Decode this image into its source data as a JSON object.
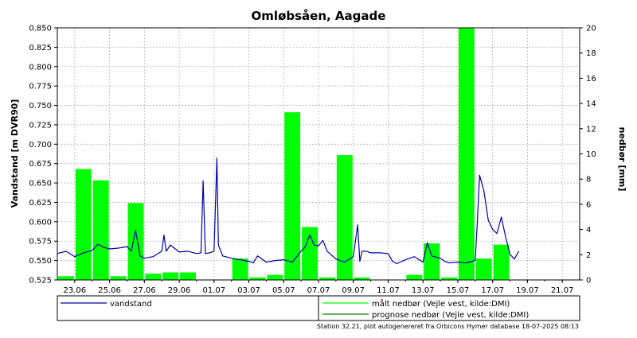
{
  "chart_data": {
    "type": "bar+line",
    "title": "Omløbsåen, Aagade",
    "ylabel_left": "Vandstand [m DVR90]",
    "ylabel_right": "nedbør [mm]",
    "ylim_left": [
      0.525,
      0.85
    ],
    "ylim_right": [
      0,
      20
    ],
    "yticks_left": [
      "0.850",
      "0.825",
      "0.800",
      "0.775",
      "0.750",
      "0.725",
      "0.700",
      "0.675",
      "0.650",
      "0.625",
      "0.600",
      "0.575",
      "0.550",
      "0.525"
    ],
    "yticks_right": [
      "20",
      "18",
      "16",
      "14",
      "12",
      "10",
      "8",
      "6",
      "4",
      "2",
      "0"
    ],
    "x_range": [
      "2025-06-22",
      "2025-07-22"
    ],
    "xtick_labels": [
      "23.06",
      "25.06",
      "27.06",
      "29.06",
      "01.07",
      "03.07",
      "05.07",
      "07.07",
      "09.07",
      "11.07",
      "13.07",
      "15.07",
      "17.07",
      "19.07",
      "21.07"
    ],
    "xtick_dates": [
      "2025-06-23",
      "2025-06-25",
      "2025-06-27",
      "2025-06-29",
      "2025-07-01",
      "2025-07-03",
      "2025-07-05",
      "2025-07-07",
      "2025-07-09",
      "2025-07-11",
      "2025-07-13",
      "2025-07-15",
      "2025-07-17",
      "2025-07-19",
      "2025-07-21"
    ],
    "grid": true,
    "series": [
      {
        "name": "vandstand",
        "axis": "left",
        "kind": "line",
        "color": "#0000aa",
        "points": [
          [
            "2025-06-22",
            0.559
          ],
          [
            "2025-06-22T12",
            0.562
          ],
          [
            "2025-06-23",
            0.555
          ],
          [
            "2025-06-23T12",
            0.56
          ],
          [
            "2025-06-24",
            0.563
          ],
          [
            "2025-06-24T08",
            0.571
          ],
          [
            "2025-06-24T16",
            0.567
          ],
          [
            "2025-06-25",
            0.565
          ],
          [
            "2025-06-25T12",
            0.566
          ],
          [
            "2025-06-26",
            0.568
          ],
          [
            "2025-06-26T06",
            0.562
          ],
          [
            "2025-06-26T12",
            0.589
          ],
          [
            "2025-06-26T18",
            0.556
          ],
          [
            "2025-06-27",
            0.553
          ],
          [
            "2025-06-27T12",
            0.555
          ],
          [
            "2025-06-28",
            0.562
          ],
          [
            "2025-06-28T03",
            0.583
          ],
          [
            "2025-06-28T06",
            0.562
          ],
          [
            "2025-06-28T12",
            0.57
          ],
          [
            "2025-06-29",
            0.561
          ],
          [
            "2025-06-29T12",
            0.562
          ],
          [
            "2025-06-30",
            0.559
          ],
          [
            "2025-06-30T06",
            0.56
          ],
          [
            "2025-06-30T09",
            0.653
          ],
          [
            "2025-06-30T12",
            0.559
          ],
          [
            "2025-06-30T18",
            0.56
          ],
          [
            "2025-07-01",
            0.562
          ],
          [
            "2025-07-01T04",
            0.682
          ],
          [
            "2025-07-01T06",
            0.57
          ],
          [
            "2025-07-01T12",
            0.556
          ],
          [
            "2025-07-02",
            0.553
          ],
          [
            "2025-07-02T12",
            0.551
          ],
          [
            "2025-07-03",
            0.549
          ],
          [
            "2025-07-03T06",
            0.547
          ],
          [
            "2025-07-03T12",
            0.556
          ],
          [
            "2025-07-04",
            0.548
          ],
          [
            "2025-07-04T12",
            0.55
          ],
          [
            "2025-07-05",
            0.551
          ],
          [
            "2025-07-05T12",
            0.548
          ],
          [
            "2025-07-06",
            0.562
          ],
          [
            "2025-07-06T06",
            0.568
          ],
          [
            "2025-07-06T12",
            0.583
          ],
          [
            "2025-07-06T18",
            0.57
          ],
          [
            "2025-07-07",
            0.569
          ],
          [
            "2025-07-07T06",
            0.576
          ],
          [
            "2025-07-07T12",
            0.562
          ],
          [
            "2025-07-08",
            0.552
          ],
          [
            "2025-07-08T12",
            0.548
          ],
          [
            "2025-07-09",
            0.555
          ],
          [
            "2025-07-09T06",
            0.596
          ],
          [
            "2025-07-09T09",
            0.549
          ],
          [
            "2025-07-09T12",
            0.562
          ],
          [
            "2025-07-09T18",
            0.562
          ],
          [
            "2025-07-10",
            0.56
          ],
          [
            "2025-07-10T12",
            0.56
          ],
          [
            "2025-07-11",
            0.559
          ],
          [
            "2025-07-11T06",
            0.549
          ],
          [
            "2025-07-11T12",
            0.546
          ],
          [
            "2025-07-12",
            0.551
          ],
          [
            "2025-07-12T12",
            0.555
          ],
          [
            "2025-07-13",
            0.548
          ],
          [
            "2025-07-13T06",
            0.573
          ],
          [
            "2025-07-13T12",
            0.556
          ],
          [
            "2025-07-14",
            0.553
          ],
          [
            "2025-07-14T06",
            0.549
          ],
          [
            "2025-07-14T12",
            0.547
          ],
          [
            "2025-07-15",
            0.548
          ],
          [
            "2025-07-15T12",
            0.547
          ],
          [
            "2025-07-16",
            0.55
          ],
          [
            "2025-07-16T03",
            0.6
          ],
          [
            "2025-07-16T06",
            0.66
          ],
          [
            "2025-07-16T12",
            0.64
          ],
          [
            "2025-07-16T18",
            0.602
          ],
          [
            "2025-07-17",
            0.59
          ],
          [
            "2025-07-17T06",
            0.585
          ],
          [
            "2025-07-17T12",
            0.606
          ],
          [
            "2025-07-17T18",
            0.58
          ],
          [
            "2025-07-18",
            0.558
          ],
          [
            "2025-07-18T06",
            0.552
          ],
          [
            "2025-07-18T12",
            0.562
          ]
        ]
      },
      {
        "name": "målt nedbør (Vejle vest, kilde:DMI)",
        "axis": "right",
        "kind": "bar",
        "color": "#00ff00",
        "bars": [
          [
            "2025-06-22",
            0.3
          ],
          [
            "2025-06-23",
            8.8
          ],
          [
            "2025-06-24",
            7.9
          ],
          [
            "2025-06-25",
            0.3
          ],
          [
            "2025-06-26",
            6.1
          ],
          [
            "2025-06-27",
            0.5
          ],
          [
            "2025-06-28",
            0.6
          ],
          [
            "2025-06-29",
            0.6
          ],
          [
            "2025-06-30",
            0.0
          ],
          [
            "2025-07-01",
            0.0
          ],
          [
            "2025-07-02",
            1.7
          ],
          [
            "2025-07-03",
            0.2
          ],
          [
            "2025-07-04",
            0.4
          ],
          [
            "2025-07-05",
            13.3
          ],
          [
            "2025-07-06",
            4.2
          ],
          [
            "2025-07-07",
            0.2
          ],
          [
            "2025-07-08",
            9.9
          ],
          [
            "2025-07-09",
            0.2
          ],
          [
            "2025-07-10",
            0.0
          ],
          [
            "2025-07-11",
            0.0
          ],
          [
            "2025-07-12",
            0.4
          ],
          [
            "2025-07-13",
            2.9
          ],
          [
            "2025-07-14",
            0.2
          ],
          [
            "2025-07-15",
            20.0
          ],
          [
            "2025-07-16",
            1.7
          ],
          [
            "2025-07-17",
            2.8
          ]
        ]
      },
      {
        "name": "prognose nedbør (Vejle vest, kilde:DMI)",
        "axis": "right",
        "kind": "bar",
        "color": "#008800",
        "bars": []
      }
    ],
    "legend_placement": "bottom"
  },
  "footer": {
    "text": "Station 32.21, plot autogenereret fra Orbicons Hymer database 18-07-2025 08:13"
  }
}
